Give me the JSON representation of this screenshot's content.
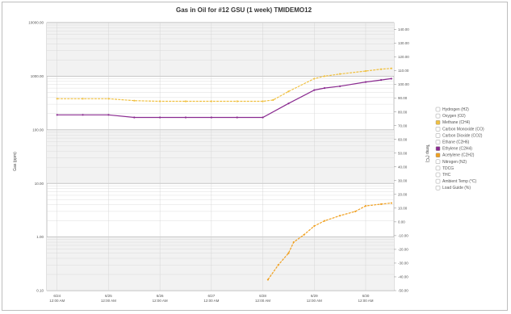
{
  "chart_data": {
    "type": "line",
    "title": "Gas in Oil for #12 GSU (1 week) TMIDEMO12",
    "ylabel_left": "Gas (ppm)",
    "ylabel_right": "Temp (°C)",
    "y_left_scale": "log",
    "y_left_ticks": [
      "0.10",
      "1.00",
      "10.00",
      "100.00",
      "1000.00",
      "10000.00"
    ],
    "y_left_range": [
      0.1,
      10000
    ],
    "y_right_ticks": [
      "-50.00",
      "-40.00",
      "-30.00",
      "-20.00",
      "-10.00",
      "0.00",
      "10.00",
      "20.00",
      "30.00",
      "40.00",
      "50.00",
      "60.00",
      "70.00",
      "80.00",
      "90.00",
      "100.00",
      "110.00",
      "120.00",
      "130.00",
      "140.00"
    ],
    "y_right_range": [
      -50,
      145
    ],
    "x_tick_labels": [
      [
        "6/24",
        "12:00 AM"
      ],
      [
        "6/25",
        "12:00 AM"
      ],
      [
        "6/26",
        "12:00 AM"
      ],
      [
        "6/27",
        "12:00 AM"
      ],
      [
        "6/28",
        "12:00 AM"
      ],
      [
        "6/29",
        "12:00 AM"
      ],
      [
        "6/30",
        "12:00 AM"
      ]
    ],
    "x_range": [
      -0.2,
      6.55
    ],
    "grid": true,
    "legend_position": "right",
    "legend": [
      {
        "name": "Hydrogen (H2)",
        "active": false,
        "color": "#ffffff"
      },
      {
        "name": "Oxygen (O2)",
        "active": false,
        "color": "#ffffff"
      },
      {
        "name": "Methane (CH4)",
        "active": true,
        "color": "#f0c040"
      },
      {
        "name": "Carbon Monoxide (CO)",
        "active": false,
        "color": "#ffffff"
      },
      {
        "name": "Carbon Dioxide (CO2)",
        "active": false,
        "color": "#ffffff"
      },
      {
        "name": "Ethane (C2H6)",
        "active": false,
        "color": "#ffffff"
      },
      {
        "name": "Ethylene (C2H4)",
        "active": true,
        "color": "#8a2a90"
      },
      {
        "name": "Acetylene (C2H2)",
        "active": true,
        "color": "#f0a020"
      },
      {
        "name": "Nitrogen (N2)",
        "active": false,
        "color": "#ffffff"
      },
      {
        "name": "TDCG",
        "active": false,
        "color": "#ffffff"
      },
      {
        "name": "THC",
        "active": false,
        "color": "#ffffff"
      },
      {
        "name": "Ambient Temp (°C)",
        "active": false,
        "color": "#ffffff"
      },
      {
        "name": "Load Guide (%)",
        "active": false,
        "color": "#ffffff"
      }
    ],
    "series": [
      {
        "name": "Methane (CH4)",
        "color": "#f0c040",
        "x": [
          0,
          0.5,
          1,
          1.5,
          2,
          2.5,
          3,
          3.5,
          4,
          4.2,
          4.5,
          5,
          5.2,
          5.5,
          6,
          6.3,
          6.5
        ],
        "y": [
          380,
          380,
          380,
          350,
          340,
          340,
          340,
          340,
          340,
          360,
          520,
          900,
          1000,
          1100,
          1250,
          1350,
          1400
        ]
      },
      {
        "name": "Ethylene (C2H4)",
        "color": "#8a2a90",
        "x": [
          0,
          0.5,
          1,
          1.5,
          2,
          2.5,
          3,
          3.5,
          4,
          4.5,
          5,
          5.2,
          5.5,
          6,
          6.3,
          6.5
        ],
        "y": [
          190,
          190,
          190,
          170,
          170,
          170,
          170,
          170,
          170,
          310,
          550,
          600,
          650,
          780,
          850,
          900
        ]
      },
      {
        "name": "Acetylene (C2H2)",
        "color": "#f0a020",
        "x": [
          4.1,
          4.3,
          4.5,
          4.6,
          4.8,
          5,
          5.2,
          5.5,
          5.8,
          6,
          6.3,
          6.5
        ],
        "y": [
          0.16,
          0.3,
          0.5,
          0.8,
          1.1,
          1.6,
          2.0,
          2.5,
          3.0,
          3.8,
          4.1,
          4.3
        ]
      }
    ]
  }
}
